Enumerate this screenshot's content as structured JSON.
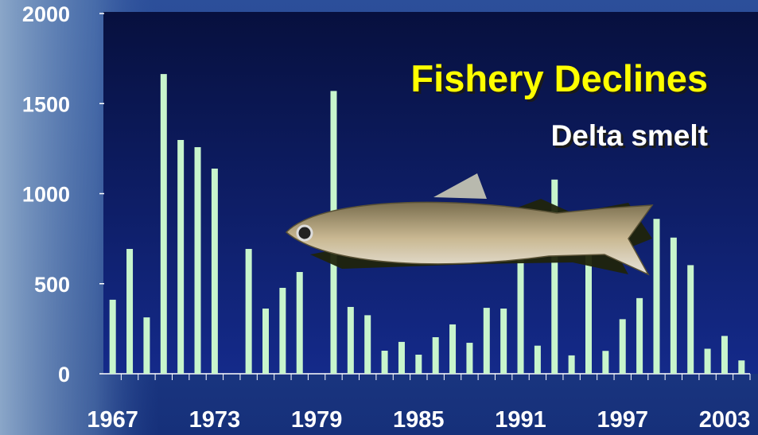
{
  "chart_data": {
    "type": "bar",
    "title": "Fishery Declines",
    "subtitle": "Delta smelt",
    "categories": [
      "1967",
      null,
      null,
      null,
      null,
      null,
      "1973",
      null,
      null,
      null,
      null,
      null,
      "1979",
      null,
      null,
      null,
      null,
      null,
      "1985",
      null,
      null,
      null,
      null,
      null,
      "1991",
      null,
      null,
      null,
      null,
      null,
      "1997",
      null,
      null,
      null,
      null,
      null,
      "2003",
      null
    ],
    "values": [
      411,
      693,
      313,
      1664,
      1298,
      1258,
      1139,
      null,
      693,
      362,
      477,
      565,
      null,
      1570,
      371,
      325,
      128,
      177,
      106,
      203,
      274,
      172,
      366,
      362,
      690,
      156,
      1078,
      102,
      900,
      127,
      303,
      420,
      860,
      756,
      603,
      139,
      210,
      74
    ],
    "color": "#c8f5cc",
    "ylim": [
      0,
      2000
    ],
    "yticks": [
      0,
      500,
      1000,
      1500,
      2000
    ]
  }
}
